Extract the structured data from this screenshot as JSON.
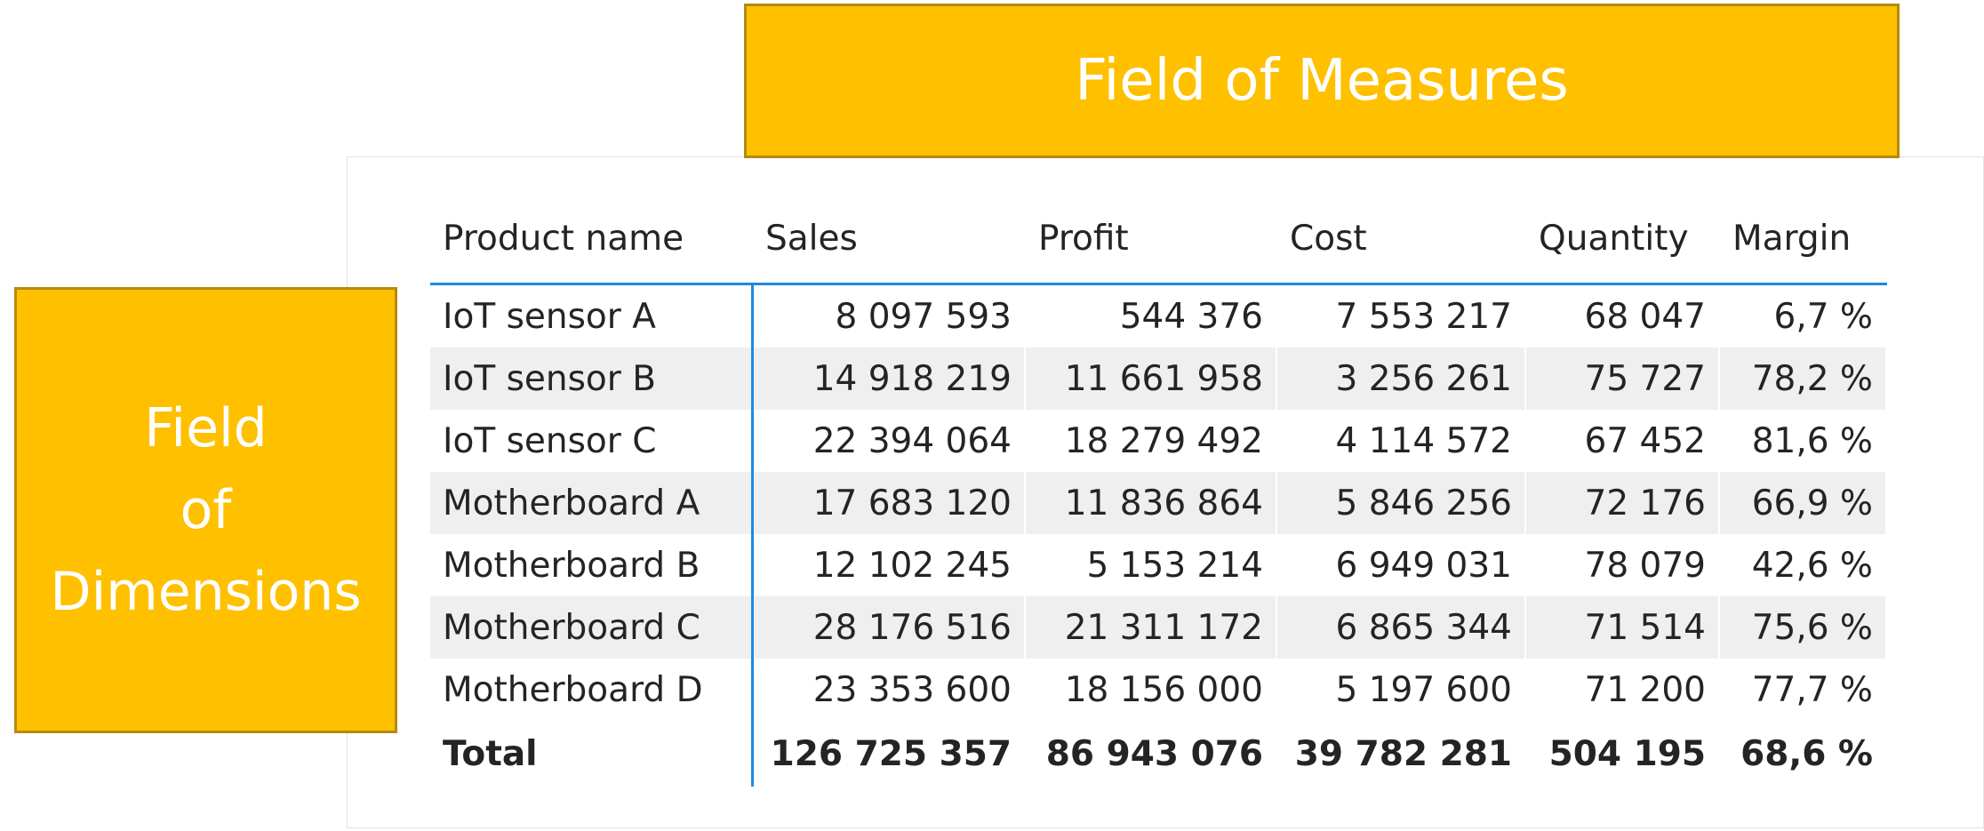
{
  "labels": {
    "measures": "Field of Measures",
    "dimensions": [
      "Field",
      "of",
      "Dimensions"
    ]
  },
  "colors": {
    "banner_fill": "#ffc000",
    "banner_border": "#b58a0f",
    "accent_line": "#1f8ae0",
    "row_shade": "#efefef"
  },
  "table": {
    "columns": [
      "Product name",
      "Sales",
      "Profit",
      "Cost",
      "Quantity",
      "Margin"
    ],
    "rows": [
      [
        "IoT sensor A",
        "8 097 593",
        "544 376",
        "7 553 217",
        "68 047",
        "6,7 %"
      ],
      [
        "IoT sensor B",
        "14 918 219",
        "11 661 958",
        "3 256 261",
        "75 727",
        "78,2 %"
      ],
      [
        "IoT sensor C",
        "22 394 064",
        "18 279 492",
        "4 114 572",
        "67 452",
        "81,6 %"
      ],
      [
        "Motherboard A",
        "17 683 120",
        "11 836 864",
        "5 846 256",
        "72 176",
        "66,9 %"
      ],
      [
        "Motherboard B",
        "12 102 245",
        "5 153 214",
        "6 949 031",
        "78 079",
        "42,6 %"
      ],
      [
        "Motherboard C",
        "28 176 516",
        "21 311 172",
        "6 865 344",
        "71 514",
        "75,6 %"
      ],
      [
        "Motherboard D",
        "23 353 600",
        "18 156 000",
        "5 197 600",
        "71 200",
        "77,7 %"
      ]
    ],
    "total": [
      "Total",
      "126 725 357",
      "86 943 076",
      "39 782 281",
      "504 195",
      "68,6 %"
    ]
  }
}
